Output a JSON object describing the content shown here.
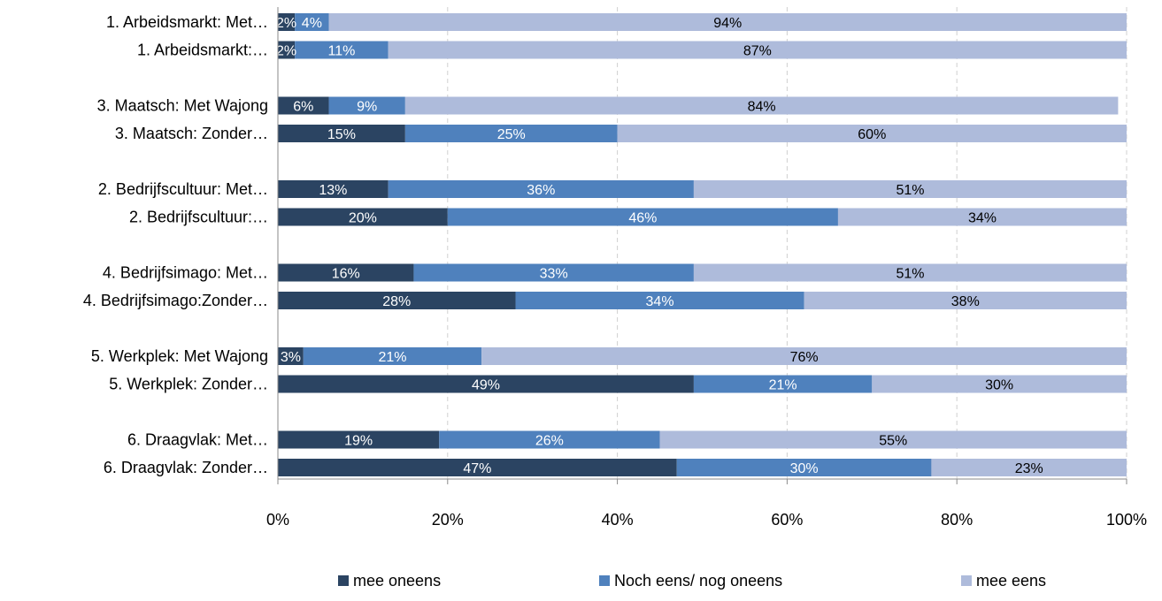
{
  "chart_data": {
    "type": "bar",
    "orientation": "horizontal",
    "stacked": "percent",
    "categories": [
      "1. Arbeidsmarkt: Met…",
      "1. Arbeidsmarkt:…",
      "3. Maatsch: Met Wajong",
      "3. Maatsch: Zonder…",
      "2. Bedrijfscultuur: Met…",
      "2. Bedrijfscultuur:…",
      "4. Bedrijfsimago: Met…",
      "4. Bedrijfsimago:Zonder…",
      "5. Werkplek: Met Wajong",
      "5. Werkplek: Zonder…",
      "6. Draagvlak: Met…",
      "6. Draagvlak: Zonder…"
    ],
    "groups": [
      [
        0,
        1
      ],
      [
        2,
        3
      ],
      [
        4,
        5
      ],
      [
        6,
        7
      ],
      [
        8,
        9
      ],
      [
        10,
        11
      ]
    ],
    "series": [
      {
        "name": "mee oneens",
        "color": "#2b4462",
        "label_color": "#ffffff",
        "values": [
          2,
          2,
          6,
          15,
          13,
          20,
          16,
          28,
          3,
          49,
          19,
          47
        ],
        "labels": [
          "2%",
          "2%",
          "6%",
          "15%",
          "13%",
          "20%",
          "16%",
          "28%",
          "3%",
          "49%",
          "19%",
          "47%"
        ]
      },
      {
        "name": "Noch eens/ nog oneens",
        "color": "#4f81bd",
        "label_color": "#ffffff",
        "values": [
          4,
          11,
          9,
          25,
          36,
          46,
          33,
          34,
          21,
          21,
          26,
          30
        ],
        "labels": [
          "4%",
          "11%",
          "9%",
          "25%",
          "36%",
          "46%",
          "33%",
          "34%",
          "21%",
          "21%",
          "26%",
          "30%"
        ]
      },
      {
        "name": "mee eens",
        "color": "#aebbdb",
        "label_color": "#000000",
        "values": [
          94,
          87,
          84,
          60,
          51,
          34,
          51,
          38,
          76,
          30,
          55,
          23
        ],
        "labels": [
          "94%",
          "87%",
          "84%",
          "60%",
          "51%",
          "34%",
          "51%",
          "38%",
          "76%",
          "30%",
          "55%",
          "23%"
        ]
      }
    ],
    "x_ticks": [
      "0%",
      "20%",
      "40%",
      "60%",
      "80%",
      "100%"
    ],
    "xlim": [
      0,
      100
    ],
    "grid": "vertical dashed",
    "legend_position": "bottom"
  }
}
